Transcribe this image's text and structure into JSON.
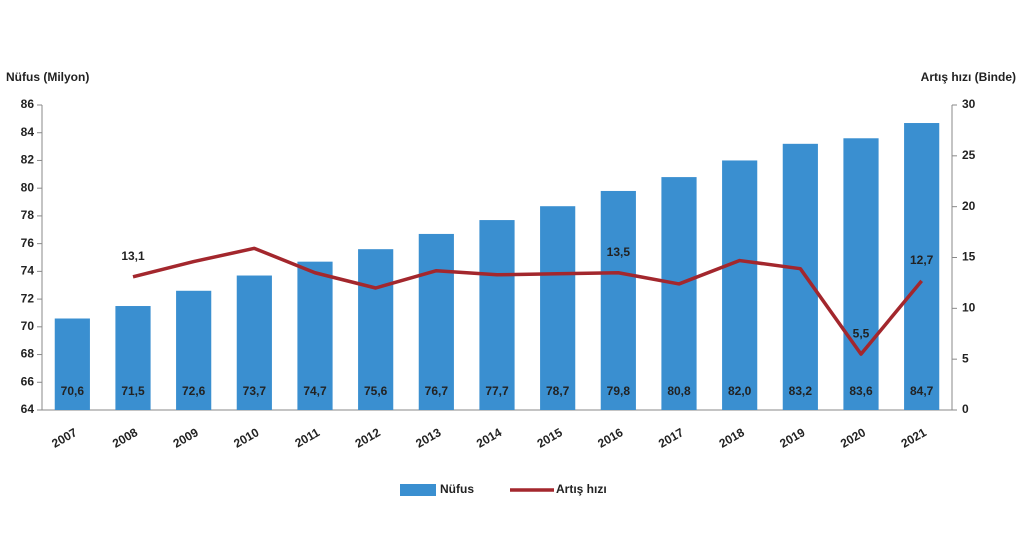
{
  "chart_data": {
    "type": "bar-line",
    "y_label": "Nüfus (Milyon)",
    "y2_label": "Artış hızı (Binde)",
    "categories": [
      "2007",
      "2008",
      "2009",
      "2010",
      "2011",
      "2012",
      "2013",
      "2014",
      "2015",
      "2016",
      "2017",
      "2018",
      "2019",
      "2020",
      "2021"
    ],
    "series": [
      {
        "name": "Nüfus",
        "type": "bar",
        "color": "#3a8fd0",
        "values": [
          70.6,
          71.5,
          72.6,
          73.7,
          74.7,
          75.6,
          76.7,
          77.7,
          78.7,
          79.8,
          80.8,
          82.0,
          83.2,
          83.6,
          84.7
        ],
        "value_labels": [
          "70,6",
          "71,5",
          "72,6",
          "73,7",
          "74,7",
          "75,6",
          "76,7",
          "77,7",
          "78,7",
          "79,8",
          "80,8",
          "82,0",
          "83,2",
          "83,6",
          "84,7"
        ]
      },
      {
        "name": "Artış hızı",
        "type": "line",
        "axis": "y2",
        "color": "#a3272d",
        "values": [
          null,
          13.1,
          14.6,
          15.9,
          13.5,
          12.0,
          13.7,
          13.3,
          13.4,
          13.5,
          12.4,
          14.7,
          13.9,
          5.5,
          12.7
        ],
        "value_labels": [
          null,
          "13,1",
          null,
          null,
          null,
          null,
          null,
          null,
          null,
          "13,5",
          null,
          null,
          null,
          "5,5",
          "12,7"
        ]
      }
    ],
    "ylim": [
      64,
      86
    ],
    "yticks": [
      64,
      66,
      68,
      70,
      72,
      74,
      76,
      78,
      80,
      82,
      84,
      86
    ],
    "y2lim": [
      0,
      30
    ],
    "y2ticks": [
      0,
      5,
      10,
      15,
      20,
      25,
      30
    ]
  }
}
